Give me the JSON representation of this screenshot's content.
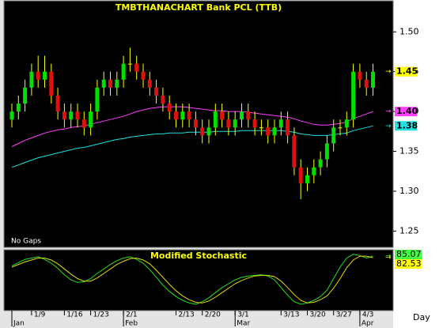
{
  "chart_data": [
    {
      "type": "candlestick",
      "title": "TMBTHANACHART Bank PCL (TTB)",
      "note": "No Gaps",
      "x_axis_label": "Day",
      "up_color": "#00e000",
      "down_color": "#e01010",
      "wick_color": "#ffff00",
      "ohlc": [
        [
          1.39,
          1.41,
          1.38,
          1.4
        ],
        [
          1.4,
          1.42,
          1.39,
          1.41
        ],
        [
          1.41,
          1.44,
          1.4,
          1.43
        ],
        [
          1.43,
          1.46,
          1.42,
          1.45
        ],
        [
          1.45,
          1.47,
          1.43,
          1.44
        ],
        [
          1.44,
          1.47,
          1.43,
          1.45
        ],
        [
          1.45,
          1.46,
          1.41,
          1.42
        ],
        [
          1.42,
          1.43,
          1.39,
          1.4
        ],
        [
          1.4,
          1.41,
          1.38,
          1.39
        ],
        [
          1.39,
          1.41,
          1.38,
          1.4
        ],
        [
          1.4,
          1.41,
          1.38,
          1.39
        ],
        [
          1.39,
          1.4,
          1.37,
          1.38
        ],
        [
          1.38,
          1.41,
          1.37,
          1.4
        ],
        [
          1.4,
          1.44,
          1.39,
          1.43
        ],
        [
          1.43,
          1.45,
          1.42,
          1.44
        ],
        [
          1.44,
          1.45,
          1.42,
          1.43
        ],
        [
          1.43,
          1.45,
          1.42,
          1.44
        ],
        [
          1.44,
          1.47,
          1.43,
          1.46
        ],
        [
          1.46,
          1.48,
          1.45,
          1.46
        ],
        [
          1.46,
          1.47,
          1.44,
          1.45
        ],
        [
          1.45,
          1.46,
          1.43,
          1.44
        ],
        [
          1.44,
          1.45,
          1.42,
          1.43
        ],
        [
          1.43,
          1.44,
          1.41,
          1.42
        ],
        [
          1.42,
          1.43,
          1.4,
          1.41
        ],
        [
          1.41,
          1.42,
          1.39,
          1.4
        ],
        [
          1.4,
          1.41,
          1.38,
          1.39
        ],
        [
          1.39,
          1.41,
          1.38,
          1.4
        ],
        [
          1.4,
          1.41,
          1.38,
          1.39
        ],
        [
          1.39,
          1.4,
          1.37,
          1.38
        ],
        [
          1.38,
          1.39,
          1.36,
          1.37
        ],
        [
          1.37,
          1.39,
          1.36,
          1.38
        ],
        [
          1.38,
          1.41,
          1.37,
          1.4
        ],
        [
          1.4,
          1.41,
          1.38,
          1.39
        ],
        [
          1.39,
          1.4,
          1.37,
          1.38
        ],
        [
          1.38,
          1.4,
          1.37,
          1.39
        ],
        [
          1.39,
          1.41,
          1.38,
          1.4
        ],
        [
          1.4,
          1.41,
          1.38,
          1.39
        ],
        [
          1.39,
          1.4,
          1.37,
          1.38
        ],
        [
          1.38,
          1.39,
          1.37,
          1.38
        ],
        [
          1.38,
          1.39,
          1.36,
          1.37
        ],
        [
          1.37,
          1.39,
          1.36,
          1.38
        ],
        [
          1.38,
          1.4,
          1.37,
          1.39
        ],
        [
          1.39,
          1.4,
          1.36,
          1.37
        ],
        [
          1.37,
          1.38,
          1.32,
          1.33
        ],
        [
          1.33,
          1.34,
          1.29,
          1.31
        ],
        [
          1.31,
          1.33,
          1.3,
          1.32
        ],
        [
          1.32,
          1.34,
          1.31,
          1.33
        ],
        [
          1.33,
          1.35,
          1.32,
          1.34
        ],
        [
          1.34,
          1.37,
          1.33,
          1.36
        ],
        [
          1.36,
          1.39,
          1.35,
          1.38
        ],
        [
          1.38,
          1.39,
          1.37,
          1.38
        ],
        [
          1.38,
          1.4,
          1.37,
          1.39
        ],
        [
          1.39,
          1.46,
          1.38,
          1.45
        ],
        [
          1.45,
          1.46,
          1.43,
          1.44
        ],
        [
          1.44,
          1.45,
          1.42,
          1.43
        ],
        [
          1.43,
          1.46,
          1.42,
          1.45
        ]
      ],
      "overlays": [
        {
          "color": "#ff40ff",
          "last_label": "1.40",
          "values": [
            1.356,
            1.36,
            1.364,
            1.367,
            1.37,
            1.373,
            1.375,
            1.377,
            1.378,
            1.38,
            1.381,
            1.382,
            1.384,
            1.386,
            1.388,
            1.39,
            1.392,
            1.394,
            1.397,
            1.4,
            1.402,
            1.404,
            1.405,
            1.406,
            1.406,
            1.406,
            1.406,
            1.405,
            1.404,
            1.403,
            1.402,
            1.401,
            1.401,
            1.4,
            1.4,
            1.4,
            1.399,
            1.398,
            1.397,
            1.396,
            1.395,
            1.394,
            1.393,
            1.391,
            1.388,
            1.386,
            1.384,
            1.383,
            1.383,
            1.384,
            1.385,
            1.387,
            1.391,
            1.394,
            1.397,
            1.4
          ]
        },
        {
          "color": "#20e0e0",
          "last_label": "1.38",
          "values": [
            1.33,
            1.333,
            1.336,
            1.339,
            1.342,
            1.344,
            1.346,
            1.348,
            1.35,
            1.352,
            1.354,
            1.355,
            1.357,
            1.359,
            1.361,
            1.363,
            1.365,
            1.366,
            1.368,
            1.369,
            1.37,
            1.371,
            1.372,
            1.372,
            1.373,
            1.373,
            1.373,
            1.374,
            1.374,
            1.374,
            1.374,
            1.375,
            1.375,
            1.375,
            1.375,
            1.376,
            1.376,
            1.376,
            1.376,
            1.376,
            1.376,
            1.376,
            1.375,
            1.374,
            1.372,
            1.371,
            1.37,
            1.37,
            1.37,
            1.371,
            1.372,
            1.373,
            1.376,
            1.378,
            1.38,
            1.382
          ]
        }
      ],
      "ylim": [
        1.23,
        1.54
      ],
      "yticks": [
        {
          "value": 1.5,
          "label": "1.50"
        },
        1.45,
        {
          "value": 1.4,
          "label": "1.40"
        },
        1.35,
        {
          "value": 1.3,
          "label": "1.30"
        },
        1.25
      ],
      "xticks": [
        {
          "value": 3,
          "label": "1/9"
        },
        {
          "value": 8,
          "label": "1/16"
        },
        {
          "value": 12,
          "label": "1/23"
        },
        {
          "value": 17,
          "label": "2/1"
        },
        {
          "value": 25,
          "label": "2/13"
        },
        {
          "value": 29,
          "label": "2/20"
        },
        {
          "value": 34,
          "label": "3/1"
        },
        {
          "value": 41,
          "label": "3/13"
        },
        {
          "value": 45,
          "label": "3/20"
        },
        {
          "value": 49,
          "label": "3/27"
        },
        {
          "value": 53,
          "label": "4/3"
        }
      ],
      "months": [
        {
          "value": 0,
          "label": "Jan"
        },
        {
          "value": 17,
          "label": "Feb"
        },
        {
          "value": 34,
          "label": "Mar"
        },
        {
          "value": 53,
          "label": "Apr"
        }
      ]
    },
    {
      "type": "line",
      "title": "Modified Stochastic",
      "ylim": [
        0,
        95
      ],
      "series": [
        {
          "color": "#20e020",
          "label_color": "#40ff40",
          "values": [
            70,
            75,
            80,
            82,
            84,
            80,
            74,
            66,
            56,
            48,
            44,
            45,
            50,
            58,
            65,
            72,
            78,
            82,
            84,
            80,
            74,
            64,
            52,
            40,
            30,
            22,
            16,
            12,
            10,
            14,
            20,
            28,
            36,
            42,
            48,
            52,
            54,
            55,
            56,
            54,
            48,
            36,
            24,
            14,
            10,
            12,
            16,
            22,
            32,
            50,
            68,
            82,
            88,
            86,
            82,
            85.07
          ]
        },
        {
          "color": "#e0e000",
          "label_color": "#ffff00",
          "values": [
            68,
            72,
            76,
            79,
            82,
            82,
            79,
            73,
            65,
            57,
            50,
            46,
            46,
            51,
            58,
            65,
            72,
            77,
            81,
            82,
            79,
            73,
            63,
            52,
            41,
            31,
            23,
            17,
            13,
            12,
            15,
            21,
            28,
            35,
            42,
            47,
            51,
            54,
            55,
            55,
            53,
            46,
            36,
            25,
            16,
            12,
            13,
            17,
            23,
            35,
            50,
            67,
            79,
            85,
            85,
            82.53
          ]
        }
      ]
    }
  ]
}
